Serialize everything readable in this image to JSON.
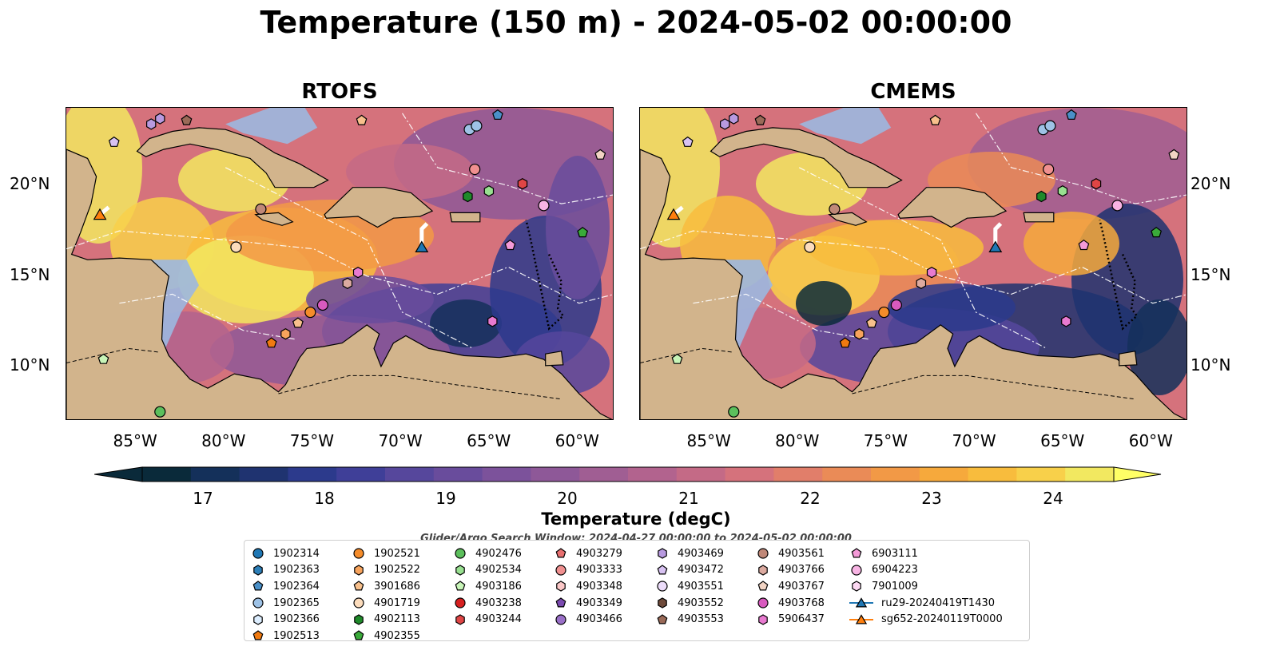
{
  "title": "Temperature (150 m) - 2024-05-02 00:00:00",
  "panels": [
    {
      "title": "RTOFS"
    },
    {
      "title": "CMEMS"
    }
  ],
  "axes": {
    "lon_ticks": [
      "85°W",
      "80°W",
      "75°W",
      "70°W",
      "65°W",
      "60°W"
    ],
    "lat_ticks": [
      "20°N",
      "15°N",
      "10°N"
    ]
  },
  "map_extent": {
    "lon": [
      -89,
      -58
    ],
    "lat": [
      7,
      24.3
    ]
  },
  "colorbar": {
    "label": "Temperature (degC)",
    "ticks": [
      "17",
      "18",
      "19",
      "20",
      "21",
      "22",
      "23",
      "24"
    ],
    "range": [
      16.5,
      24.5
    ],
    "colors": [
      "#0a2a3a",
      "#14305a",
      "#1f3370",
      "#2c3a8c",
      "#3f3f98",
      "#56479c",
      "#694c9c",
      "#7c529b",
      "#8e5898",
      "#a05e93",
      "#b2638e",
      "#c46a86",
      "#d5727c",
      "#e17e6a",
      "#ea8b57",
      "#f29946",
      "#f6a93c",
      "#f8bc3d",
      "#f8d04a",
      "#f2e860"
    ]
  },
  "search_window": "Glider/Argo Search Window: 2024-04-27 00:00:00 to 2024-05-02 00:00:00",
  "colors": {
    "land": "#d2b48c",
    "shelf": "#9cb8e0",
    "background": "#ffffff"
  },
  "legend": [
    [
      {
        "label": "1902314",
        "marker": "circle",
        "color": "#1f77b4"
      },
      {
        "label": "1902363",
        "marker": "hexagon",
        "color": "#2c7fb8"
      },
      {
        "label": "1902364",
        "marker": "pentagon",
        "color": "#4a90c8"
      },
      {
        "label": "1902365",
        "marker": "circle",
        "color": "#9ec2e6"
      },
      {
        "label": "1902366",
        "marker": "hexagon",
        "color": "#ddeeff"
      },
      {
        "label": "1902513",
        "marker": "pentagon",
        "color": "#f07a10"
      }
    ],
    [
      {
        "label": "1902521",
        "marker": "circle",
        "color": "#f58c2a"
      },
      {
        "label": "1902522",
        "marker": "hexagon",
        "color": "#f7a35c"
      },
      {
        "label": "3901686",
        "marker": "pentagon",
        "color": "#f8c08c"
      },
      {
        "label": "4901719",
        "marker": "circle",
        "color": "#fcdcbc"
      },
      {
        "label": "4902113",
        "marker": "hexagon",
        "color": "#1f8a2a"
      },
      {
        "label": "4902355",
        "marker": "pentagon",
        "color": "#3aaa3a"
      }
    ],
    [
      {
        "label": "4902476",
        "marker": "circle",
        "color": "#5cbf5c"
      },
      {
        "label": "4902534",
        "marker": "hexagon",
        "color": "#98e090"
      },
      {
        "label": "4903186",
        "marker": "pentagon",
        "color": "#c8f5b8"
      },
      {
        "label": "4903238",
        "marker": "circle",
        "color": "#d62020"
      },
      {
        "label": "4903244",
        "marker": "hexagon",
        "color": "#e04545"
      }
    ],
    [
      {
        "label": "4903279",
        "marker": "pentagon",
        "color": "#e87070"
      },
      {
        "label": "4903333",
        "marker": "circle",
        "color": "#f09090"
      },
      {
        "label": "4903348",
        "marker": "hexagon",
        "color": "#fcc8c8"
      },
      {
        "label": "4903349",
        "marker": "pentagon",
        "color": "#7b4ab0"
      },
      {
        "label": "4903466",
        "marker": "circle",
        "color": "#9a70c8"
      }
    ],
    [
      {
        "label": "4903469",
        "marker": "hexagon",
        "color": "#b89ae0"
      },
      {
        "label": "4903472",
        "marker": "pentagon",
        "color": "#d8c2f2"
      },
      {
        "label": "4903551",
        "marker": "circle",
        "color": "#ecdcfa"
      },
      {
        "label": "4903552",
        "marker": "hexagon",
        "color": "#6e4a3a"
      },
      {
        "label": "4903553",
        "marker": "pentagon",
        "color": "#9a6a58"
      }
    ],
    [
      {
        "label": "4903561",
        "marker": "circle",
        "color": "#c08878"
      },
      {
        "label": "4903766",
        "marker": "hexagon",
        "color": "#dcaaa0"
      },
      {
        "label": "4903767",
        "marker": "pentagon",
        "color": "#f2d4c4"
      },
      {
        "label": "4903768",
        "marker": "circle",
        "color": "#d85abf"
      },
      {
        "label": "5906437",
        "marker": "hexagon",
        "color": "#e87ad0"
      }
    ],
    [
      {
        "label": "6903111",
        "marker": "pentagon",
        "color": "#f49ad8"
      },
      {
        "label": "6904223",
        "marker": "circle",
        "color": "#f8b4e4"
      },
      {
        "label": "7901009",
        "marker": "hexagon",
        "color": "#fcd8f2"
      },
      {
        "label": "ru29-20240419T1430",
        "marker": "triangle-line",
        "color": "#1f77b4"
      },
      {
        "label": "sg652-20240119T0000",
        "marker": "triangle-line",
        "color": "#ff7f0e"
      }
    ]
  ],
  "floats": [
    {
      "id": "1902365",
      "lon": -66.2,
      "lat": 23.1
    },
    {
      "id": "1902365",
      "lon": -65.8,
      "lat": 23.3
    },
    {
      "id": "1902364",
      "lon": -64.6,
      "lat": 23.9
    },
    {
      "id": "3901686",
      "lon": -72.3,
      "lat": 23.6
    },
    {
      "id": "4903472",
      "lon": -86.3,
      "lat": 22.4
    },
    {
      "id": "4903469",
      "lon": -84.2,
      "lat": 23.4
    },
    {
      "id": "4903469",
      "lon": -83.7,
      "lat": 23.7
    },
    {
      "id": "4903553",
      "lon": -82.2,
      "lat": 23.6
    },
    {
      "id": "4903767",
      "lon": -58.8,
      "lat": 21.7
    },
    {
      "id": "4903333",
      "lon": -65.9,
      "lat": 20.9
    },
    {
      "id": "4902113",
      "lon": -66.3,
      "lat": 19.4
    },
    {
      "id": "4902534",
      "lon": -65.1,
      "lat": 19.7
    },
    {
      "id": "4903244",
      "lon": -63.2,
      "lat": 20.1
    },
    {
      "id": "6904223",
      "lon": -62.0,
      "lat": 18.9
    },
    {
      "id": "4902355",
      "lon": -59.8,
      "lat": 17.4
    },
    {
      "id": "6903111",
      "lon": -63.9,
      "lat": 16.7
    },
    {
      "id": "4903561",
      "lon": -78.0,
      "lat": 18.7
    },
    {
      "id": "4901719",
      "lon": -79.4,
      "lat": 16.6
    },
    {
      "id": "5906437",
      "lon": -72.5,
      "lat": 15.2
    },
    {
      "id": "4903766",
      "lon": -73.1,
      "lat": 14.6
    },
    {
      "id": "4903768",
      "lon": -74.5,
      "lat": 13.4
    },
    {
      "id": "1902521",
      "lon": -75.2,
      "lat": 13.0
    },
    {
      "id": "3901686",
      "lon": -75.9,
      "lat": 12.4
    },
    {
      "id": "1902522",
      "lon": -76.6,
      "lat": 11.8
    },
    {
      "id": "1902513",
      "lon": -77.4,
      "lat": 11.3
    },
    {
      "id": "5906437",
      "lon": -64.9,
      "lat": 12.5
    },
    {
      "id": "4903186",
      "lon": -86.9,
      "lat": 10.4
    },
    {
      "id": "4902476",
      "lon": -83.7,
      "lat": 7.5
    }
  ],
  "gliders": [
    {
      "id": "ru29-20240419T1430",
      "lon": -68.9,
      "lat": 16.6,
      "color": "#1f77b4"
    },
    {
      "id": "sg652-20240119T0000",
      "lon": -87.1,
      "lat": 18.4,
      "color": "#ff7f0e"
    }
  ]
}
